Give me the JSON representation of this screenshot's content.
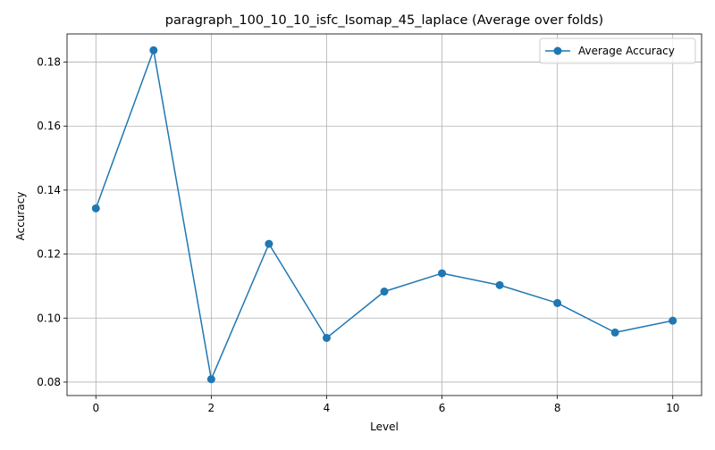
{
  "chart_data": {
    "type": "line",
    "title": "paragraph_100_10_10_isfc_Isomap_45_laplace (Average over folds)",
    "xlabel": "Level",
    "ylabel": "Accuracy",
    "x": [
      0,
      1,
      2,
      3,
      4,
      5,
      6,
      7,
      8,
      9,
      10
    ],
    "series": [
      {
        "name": "Average Accuracy",
        "color": "#1f77b4",
        "marker": "circle",
        "values": [
          0.1343,
          0.1837,
          0.0809,
          0.1232,
          0.0938,
          0.1083,
          0.114,
          0.1103,
          0.1047,
          0.0955,
          0.0992
        ]
      }
    ],
    "xlim": [
      -0.5,
      10.5
    ],
    "ylim": [
      0.0758,
      0.1888
    ],
    "xticks": [
      0,
      2,
      4,
      6,
      8,
      10
    ],
    "xtick_labels": [
      "0",
      "2",
      "4",
      "6",
      "8",
      "10"
    ],
    "yticks": [
      0.08,
      0.1,
      0.12,
      0.14,
      0.16,
      0.18
    ],
    "ytick_labels": [
      "0.08",
      "0.10",
      "0.12",
      "0.14",
      "0.16",
      "0.18"
    ],
    "grid": true,
    "legend_position": "top-right"
  }
}
